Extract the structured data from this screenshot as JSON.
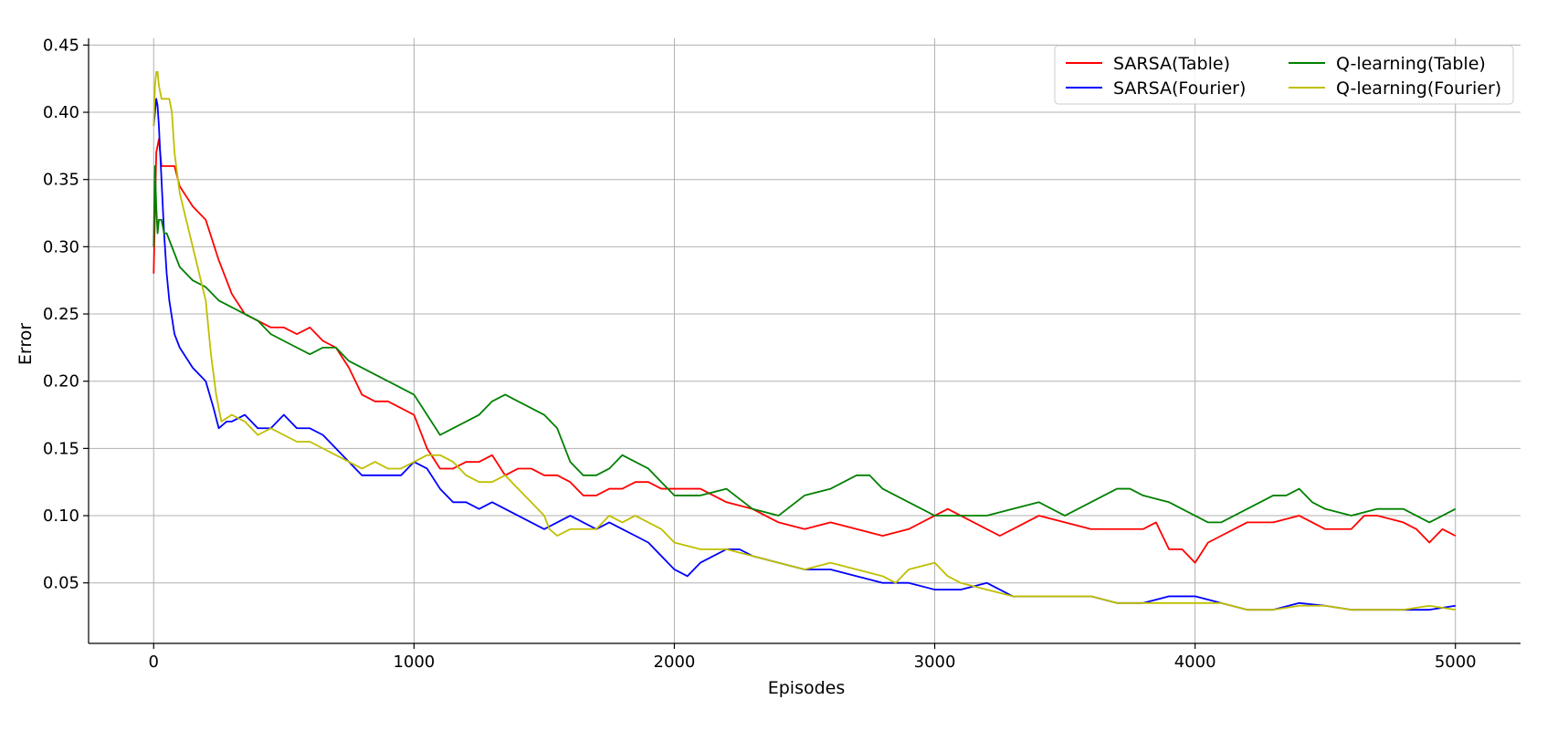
{
  "chart_data": {
    "type": "line",
    "title": "",
    "xlabel": "Episodes",
    "ylabel": "Error",
    "xlim": [
      -250,
      5250
    ],
    "ylim": [
      0.005,
      0.455
    ],
    "xticks": [
      0,
      1000,
      2000,
      3000,
      4000,
      5000
    ],
    "xtick_labels": [
      "0",
      "1000",
      "2000",
      "3000",
      "4000",
      "5000"
    ],
    "yticks": [
      0.05,
      0.1,
      0.15,
      0.2,
      0.25,
      0.3,
      0.35,
      0.4,
      0.45
    ],
    "ytick_labels": [
      "0.05",
      "0.10",
      "0.15",
      "0.20",
      "0.25",
      "0.30",
      "0.35",
      "0.40",
      "0.45"
    ],
    "grid": true,
    "legend_position": "top-right",
    "legend_columns": 2,
    "series": [
      {
        "name": "SARSA(Table)",
        "color": "#ff0000",
        "x": [
          0,
          10,
          20,
          30,
          50,
          80,
          100,
          150,
          200,
          250,
          300,
          350,
          400,
          450,
          500,
          550,
          600,
          650,
          700,
          750,
          800,
          850,
          900,
          950,
          1000,
          1050,
          1100,
          1150,
          1200,
          1250,
          1300,
          1350,
          1400,
          1450,
          1500,
          1550,
          1600,
          1650,
          1700,
          1750,
          1800,
          1850,
          1900,
          1950,
          2000,
          2100,
          2200,
          2300,
          2400,
          2500,
          2600,
          2700,
          2800,
          2900,
          3000,
          3050,
          3100,
          3200,
          3250,
          3300,
          3400,
          3500,
          3600,
          3700,
          3800,
          3850,
          3900,
          3950,
          4000,
          4050,
          4100,
          4200,
          4300,
          4400,
          4500,
          4600,
          4650,
          4700,
          4800,
          4850,
          4900,
          4950,
          5000
        ],
        "y": [
          0.28,
          0.37,
          0.38,
          0.36,
          0.36,
          0.36,
          0.345,
          0.33,
          0.32,
          0.29,
          0.265,
          0.25,
          0.245,
          0.24,
          0.24,
          0.235,
          0.24,
          0.23,
          0.225,
          0.21,
          0.19,
          0.185,
          0.185,
          0.18,
          0.175,
          0.15,
          0.135,
          0.135,
          0.14,
          0.14,
          0.145,
          0.13,
          0.135,
          0.135,
          0.13,
          0.13,
          0.125,
          0.115,
          0.115,
          0.12,
          0.12,
          0.125,
          0.125,
          0.12,
          0.12,
          0.12,
          0.11,
          0.105,
          0.095,
          0.09,
          0.095,
          0.09,
          0.085,
          0.09,
          0.1,
          0.105,
          0.1,
          0.09,
          0.085,
          0.09,
          0.1,
          0.095,
          0.09,
          0.09,
          0.09,
          0.095,
          0.075,
          0.075,
          0.065,
          0.08,
          0.085,
          0.095,
          0.095,
          0.1,
          0.09,
          0.09,
          0.1,
          0.1,
          0.095,
          0.09,
          0.08,
          0.09,
          0.085
        ]
      },
      {
        "name": "SARSA(Fourier)",
        "color": "#0000ff",
        "x": [
          0,
          5,
          10,
          15,
          20,
          30,
          40,
          50,
          60,
          80,
          100,
          150,
          200,
          230,
          250,
          280,
          300,
          350,
          400,
          450,
          500,
          550,
          600,
          650,
          700,
          750,
          800,
          850,
          900,
          950,
          1000,
          1050,
          1100,
          1150,
          1200,
          1250,
          1300,
          1350,
          1400,
          1450,
          1500,
          1550,
          1600,
          1650,
          1700,
          1750,
          1800,
          1850,
          1900,
          1950,
          2000,
          2050,
          2100,
          2150,
          2200,
          2250,
          2300,
          2400,
          2500,
          2600,
          2700,
          2800,
          2900,
          3000,
          3100,
          3200,
          3300,
          3400,
          3500,
          3600,
          3700,
          3800,
          3900,
          4000,
          4100,
          4200,
          4300,
          4400,
          4500,
          4600,
          4700,
          4800,
          4900,
          5000
        ],
        "y": [
          0.39,
          0.4,
          0.41,
          0.405,
          0.39,
          0.35,
          0.31,
          0.28,
          0.26,
          0.235,
          0.225,
          0.21,
          0.2,
          0.18,
          0.165,
          0.17,
          0.17,
          0.175,
          0.165,
          0.165,
          0.175,
          0.165,
          0.165,
          0.16,
          0.15,
          0.14,
          0.13,
          0.13,
          0.13,
          0.13,
          0.14,
          0.135,
          0.12,
          0.11,
          0.11,
          0.105,
          0.11,
          0.105,
          0.1,
          0.095,
          0.09,
          0.095,
          0.1,
          0.095,
          0.09,
          0.095,
          0.09,
          0.085,
          0.08,
          0.07,
          0.06,
          0.055,
          0.065,
          0.07,
          0.075,
          0.075,
          0.07,
          0.065,
          0.06,
          0.06,
          0.055,
          0.05,
          0.05,
          0.045,
          0.045,
          0.05,
          0.04,
          0.04,
          0.04,
          0.04,
          0.035,
          0.035,
          0.04,
          0.04,
          0.035,
          0.03,
          0.03,
          0.035,
          0.033,
          0.03,
          0.03,
          0.03,
          0.03,
          0.033
        ]
      },
      {
        "name": "Q-learning(Table)",
        "color": "#008000",
        "x": [
          0,
          5,
          10,
          15,
          20,
          30,
          40,
          50,
          70,
          100,
          150,
          200,
          250,
          300,
          350,
          400,
          450,
          500,
          550,
          600,
          650,
          700,
          750,
          800,
          850,
          900,
          950,
          1000,
          1050,
          1100,
          1150,
          1200,
          1250,
          1300,
          1350,
          1400,
          1450,
          1500,
          1550,
          1600,
          1650,
          1700,
          1750,
          1800,
          1850,
          1900,
          1950,
          2000,
          2100,
          2200,
          2300,
          2400,
          2500,
          2600,
          2650,
          2700,
          2750,
          2800,
          2900,
          3000,
          3100,
          3200,
          3300,
          3400,
          3500,
          3600,
          3700,
          3750,
          3800,
          3900,
          4000,
          4050,
          4100,
          4200,
          4250,
          4300,
          4350,
          4400,
          4450,
          4500,
          4600,
          4700,
          4800,
          4900,
          4950,
          5000
        ],
        "y": [
          0.3,
          0.36,
          0.33,
          0.31,
          0.32,
          0.32,
          0.31,
          0.31,
          0.3,
          0.285,
          0.275,
          0.27,
          0.26,
          0.255,
          0.25,
          0.245,
          0.235,
          0.23,
          0.225,
          0.22,
          0.225,
          0.225,
          0.215,
          0.21,
          0.205,
          0.2,
          0.195,
          0.19,
          0.175,
          0.16,
          0.165,
          0.17,
          0.175,
          0.185,
          0.19,
          0.185,
          0.18,
          0.175,
          0.165,
          0.14,
          0.13,
          0.13,
          0.135,
          0.145,
          0.14,
          0.135,
          0.125,
          0.115,
          0.115,
          0.12,
          0.105,
          0.1,
          0.115,
          0.12,
          0.125,
          0.13,
          0.13,
          0.12,
          0.11,
          0.1,
          0.1,
          0.1,
          0.105,
          0.11,
          0.1,
          0.11,
          0.12,
          0.12,
          0.115,
          0.11,
          0.1,
          0.095,
          0.095,
          0.105,
          0.11,
          0.115,
          0.115,
          0.12,
          0.11,
          0.105,
          0.1,
          0.105,
          0.105,
          0.095,
          0.1,
          0.105
        ]
      },
      {
        "name": "Q-learning(Fourier)",
        "color": "#bfbf00",
        "x": [
          0,
          5,
          10,
          15,
          20,
          30,
          40,
          50,
          60,
          70,
          80,
          100,
          150,
          200,
          220,
          240,
          260,
          300,
          350,
          400,
          450,
          500,
          550,
          600,
          650,
          700,
          750,
          800,
          850,
          900,
          950,
          1000,
          1050,
          1100,
          1150,
          1200,
          1250,
          1300,
          1350,
          1400,
          1450,
          1500,
          1520,
          1550,
          1600,
          1650,
          1700,
          1750,
          1800,
          1850,
          1900,
          1950,
          2000,
          2100,
          2200,
          2300,
          2400,
          2500,
          2600,
          2700,
          2800,
          2850,
          2900,
          3000,
          3050,
          3100,
          3200,
          3300,
          3400,
          3500,
          3600,
          3700,
          3800,
          3900,
          4000,
          4100,
          4200,
          4300,
          4400,
          4500,
          4600,
          4700,
          4800,
          4900,
          5000
        ],
        "y": [
          0.39,
          0.42,
          0.43,
          0.43,
          0.42,
          0.41,
          0.41,
          0.41,
          0.41,
          0.4,
          0.37,
          0.34,
          0.3,
          0.26,
          0.22,
          0.19,
          0.17,
          0.175,
          0.17,
          0.16,
          0.165,
          0.16,
          0.155,
          0.155,
          0.15,
          0.145,
          0.14,
          0.135,
          0.14,
          0.135,
          0.135,
          0.14,
          0.145,
          0.145,
          0.14,
          0.13,
          0.125,
          0.125,
          0.13,
          0.12,
          0.11,
          0.1,
          0.09,
          0.085,
          0.09,
          0.09,
          0.09,
          0.1,
          0.095,
          0.1,
          0.095,
          0.09,
          0.08,
          0.075,
          0.075,
          0.07,
          0.065,
          0.06,
          0.065,
          0.06,
          0.055,
          0.05,
          0.06,
          0.065,
          0.055,
          0.05,
          0.045,
          0.04,
          0.04,
          0.04,
          0.04,
          0.035,
          0.035,
          0.035,
          0.035,
          0.035,
          0.03,
          0.03,
          0.033,
          0.033,
          0.03,
          0.03,
          0.03,
          0.033,
          0.03
        ]
      }
    ]
  }
}
